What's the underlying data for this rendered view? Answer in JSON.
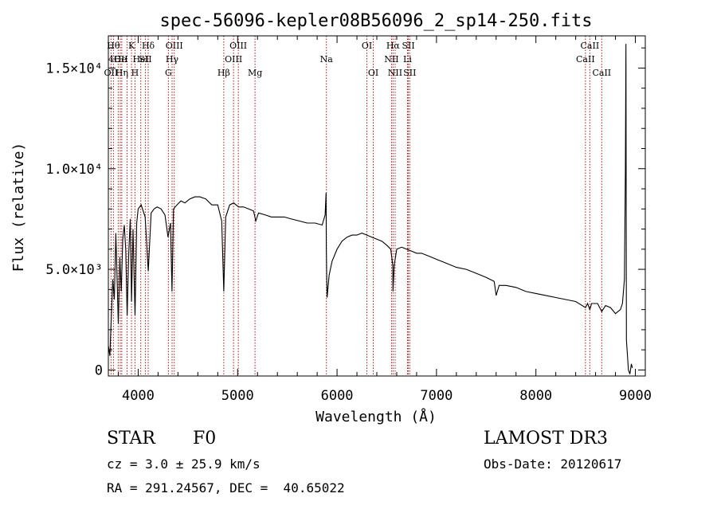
{
  "chart_data": {
    "type": "line",
    "title": "spec-56096-kepler08B56096_2_sp14-250.fits",
    "xlabel": "Wavelength (Å)",
    "ylabel": "Flux (relative)",
    "xlim": [
      3700,
      9100
    ],
    "ylim": [
      -300,
      16600
    ],
    "x_ticks": [
      {
        "value": 4000,
        "label": "4000"
      },
      {
        "value": 5000,
        "label": "5000"
      },
      {
        "value": 6000,
        "label": "6000"
      },
      {
        "value": 7000,
        "label": "7000"
      },
      {
        "value": 8000,
        "label": "8000"
      },
      {
        "value": 9000,
        "label": "9000"
      }
    ],
    "y_ticks": [
      {
        "value": 0,
        "label": "0"
      },
      {
        "value": 5000,
        "label": "5.0×10³"
      },
      {
        "value": 10000,
        "label": "1.0×10⁴"
      },
      {
        "value": 15000,
        "label": "1.5×10⁴"
      }
    ],
    "series": [
      {
        "name": "spectrum",
        "points": [
          [
            3700,
            1200
          ],
          [
            3715,
            700
          ],
          [
            3730,
            2600
          ],
          [
            3745,
            4500
          ],
          [
            3760,
            3500
          ],
          [
            3775,
            6800
          ],
          [
            3790,
            4200
          ],
          [
            3800,
            2300
          ],
          [
            3815,
            5600
          ],
          [
            3830,
            3900
          ],
          [
            3845,
            6500
          ],
          [
            3860,
            7200
          ],
          [
            3875,
            6000
          ],
          [
            3889,
            2700
          ],
          [
            3905,
            5800
          ],
          [
            3920,
            7500
          ],
          [
            3933,
            3400
          ],
          [
            3948,
            7000
          ],
          [
            3968,
            2700
          ],
          [
            3985,
            7300
          ],
          [
            4000,
            8000
          ],
          [
            4030,
            8200
          ],
          [
            4070,
            7600
          ],
          [
            4101,
            4900
          ],
          [
            4130,
            7800
          ],
          [
            4160,
            8000
          ],
          [
            4190,
            8100
          ],
          [
            4230,
            8000
          ],
          [
            4270,
            7700
          ],
          [
            4300,
            6600
          ],
          [
            4325,
            7300
          ],
          [
            4340,
            3900
          ],
          [
            4355,
            8000
          ],
          [
            4390,
            8200
          ],
          [
            4430,
            8400
          ],
          [
            4470,
            8300
          ],
          [
            4520,
            8500
          ],
          [
            4570,
            8600
          ],
          [
            4620,
            8600
          ],
          [
            4680,
            8500
          ],
          [
            4740,
            8200
          ],
          [
            4800,
            8200
          ],
          [
            4840,
            7400
          ],
          [
            4861,
            3900
          ],
          [
            4880,
            7600
          ],
          [
            4920,
            8200
          ],
          [
            4960,
            8300
          ],
          [
            5010,
            8100
          ],
          [
            5060,
            8100
          ],
          [
            5110,
            8000
          ],
          [
            5160,
            7900
          ],
          [
            5183,
            7400
          ],
          [
            5210,
            7800
          ],
          [
            5280,
            7700
          ],
          [
            5340,
            7600
          ],
          [
            5400,
            7600
          ],
          [
            5470,
            7600
          ],
          [
            5540,
            7500
          ],
          [
            5620,
            7400
          ],
          [
            5700,
            7300
          ],
          [
            5780,
            7300
          ],
          [
            5850,
            7200
          ],
          [
            5880,
            7700
          ],
          [
            5890,
            8800
          ],
          [
            5892,
            6100
          ],
          [
            5896,
            4600
          ],
          [
            5900,
            3600
          ],
          [
            5920,
            4700
          ],
          [
            5950,
            5400
          ],
          [
            6000,
            6000
          ],
          [
            6050,
            6400
          ],
          [
            6100,
            6600
          ],
          [
            6150,
            6700
          ],
          [
            6200,
            6700
          ],
          [
            6250,
            6800
          ],
          [
            6300,
            6700
          ],
          [
            6350,
            6600
          ],
          [
            6400,
            6500
          ],
          [
            6450,
            6400
          ],
          [
            6500,
            6200
          ],
          [
            6540,
            6000
          ],
          [
            6560,
            5200
          ],
          [
            6563,
            3900
          ],
          [
            6575,
            5200
          ],
          [
            6600,
            6000
          ],
          [
            6650,
            6100
          ],
          [
            6700,
            6000
          ],
          [
            6750,
            5900
          ],
          [
            6800,
            5800
          ],
          [
            6850,
            5800
          ],
          [
            6900,
            5700
          ],
          [
            6950,
            5600
          ],
          [
            7000,
            5500
          ],
          [
            7100,
            5300
          ],
          [
            7200,
            5100
          ],
          [
            7300,
            5000
          ],
          [
            7400,
            4800
          ],
          [
            7500,
            4600
          ],
          [
            7580,
            4400
          ],
          [
            7600,
            3700
          ],
          [
            7630,
            4200
          ],
          [
            7700,
            4200
          ],
          [
            7800,
            4100
          ],
          [
            7900,
            3900
          ],
          [
            8000,
            3800
          ],
          [
            8100,
            3700
          ],
          [
            8200,
            3600
          ],
          [
            8300,
            3500
          ],
          [
            8400,
            3400
          ],
          [
            8498,
            3100
          ],
          [
            8520,
            3300
          ],
          [
            8542,
            3000
          ],
          [
            8560,
            3300
          ],
          [
            8620,
            3300
          ],
          [
            8662,
            2900
          ],
          [
            8700,
            3200
          ],
          [
            8750,
            3100
          ],
          [
            8800,
            2800
          ],
          [
            8850,
            3000
          ],
          [
            8870,
            3300
          ],
          [
            8890,
            4500
          ],
          [
            8900,
            10000
          ],
          [
            8905,
            16200
          ],
          [
            8910,
            1500
          ],
          [
            8930,
            0
          ],
          [
            8945,
            -200
          ],
          [
            8960,
            300
          ],
          [
            8970,
            100
          ]
        ]
      }
    ],
    "line_markers": [
      {
        "wavelength": 3751,
        "label": "Hθ",
        "row": 0
      },
      {
        "wavelength": 3727,
        "label": "OII",
        "row": 2
      },
      {
        "wavelength": 3799,
        "label": "4OII",
        "row": 1
      },
      {
        "wavelength": 3820,
        "label": "He",
        "row": 1
      },
      {
        "wavelength": 3835,
        "label": "Hη",
        "row": 2
      },
      {
        "wavelength": 3889,
        "label": "",
        "row": -1
      },
      {
        "wavelength": 3933,
        "label": "K",
        "row": 0
      },
      {
        "wavelength": 3968,
        "label": "H",
        "row": 2
      },
      {
        "wavelength": 4026,
        "label": "HeI",
        "row": 1
      },
      {
        "wavelength": 4072,
        "label": "SII",
        "row": 1
      },
      {
        "wavelength": 4101,
        "label": "Hδ",
        "row": 0
      },
      {
        "wavelength": 4304,
        "label": "G",
        "row": 2
      },
      {
        "wavelength": 4341,
        "label": "Hγ",
        "row": 1
      },
      {
        "wavelength": 4363,
        "label": "OIII",
        "row": 0
      },
      {
        "wavelength": 4861,
        "label": "Hβ",
        "row": 2
      },
      {
        "wavelength": 4959,
        "label": "OIII",
        "row": 1
      },
      {
        "wavelength": 5007,
        "label": "OIII",
        "row": 0
      },
      {
        "wavelength": 5175,
        "label": "Mg",
        "row": 2
      },
      {
        "wavelength": 5893,
        "label": "Na",
        "row": 1
      },
      {
        "wavelength": 6300,
        "label": "OI",
        "row": 0
      },
      {
        "wavelength": 6364,
        "label": "OI",
        "row": 2
      },
      {
        "wavelength": 6548,
        "label": "NII",
        "row": 1
      },
      {
        "wavelength": 6563,
        "label": "Hα",
        "row": 0
      },
      {
        "wavelength": 6584,
        "label": "NII",
        "row": 2
      },
      {
        "wavelength": 6708,
        "label": "Li",
        "row": 1
      },
      {
        "wavelength": 6717,
        "label": "SII",
        "row": 0
      },
      {
        "wavelength": 6731,
        "label": "SII",
        "row": 2
      },
      {
        "wavelength": 8498,
        "label": "CaII",
        "row": 1
      },
      {
        "wavelength": 8542,
        "label": "CaII",
        "row": 0
      },
      {
        "wavelength": 8662,
        "label": "CaII",
        "row": 2
      }
    ]
  },
  "footer": {
    "object_class": "STAR",
    "subclass": "F0",
    "survey": "LAMOST DR3",
    "redshift": "cz = 3.0 ± 25.9 km/s",
    "obs_date": "Obs-Date: 20120617",
    "coords": "RA = 291.24567, DEC =  40.65022"
  },
  "colors": {
    "line_marker": "#b01010",
    "spectrum": "#000000",
    "axes": "#000000"
  }
}
